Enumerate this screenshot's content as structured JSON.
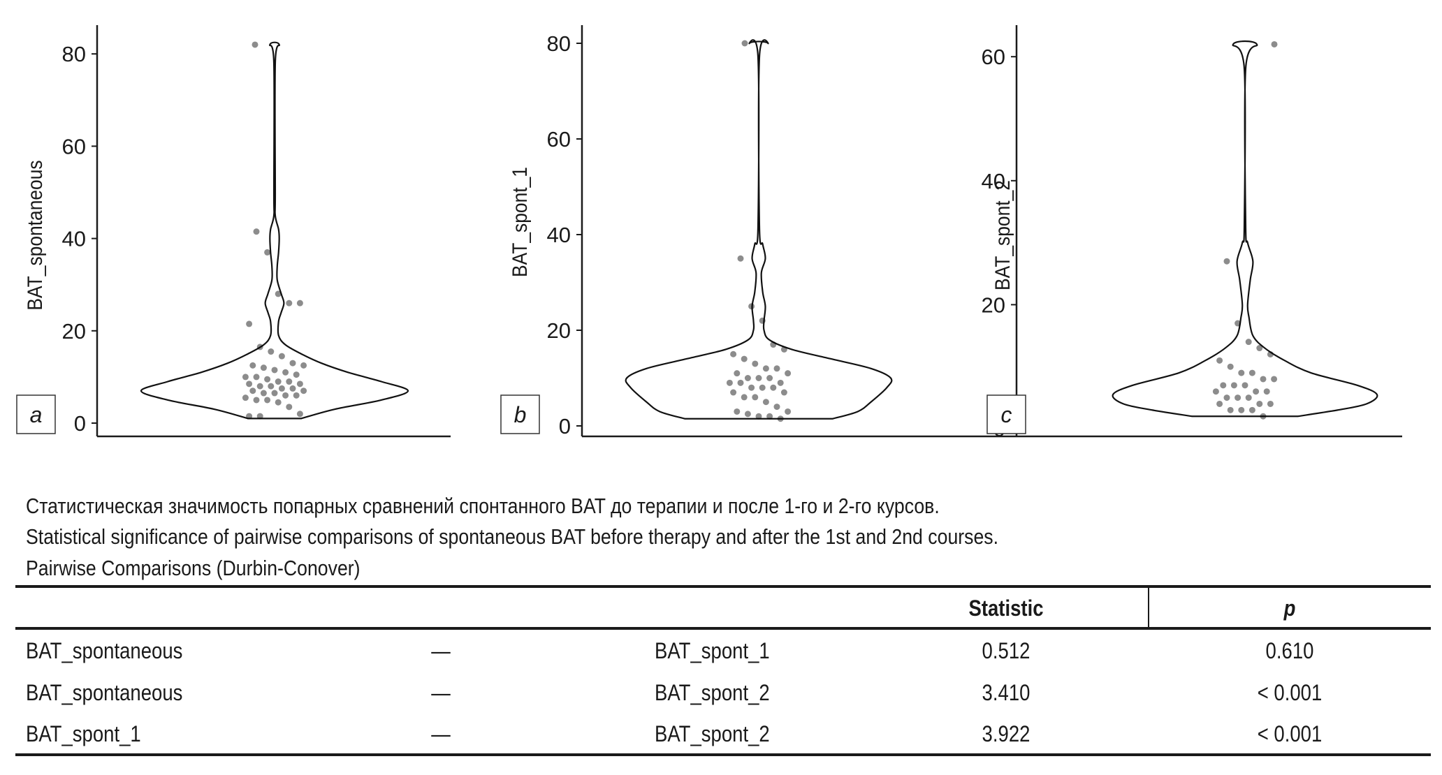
{
  "chart_data": [
    {
      "type": "violin",
      "panel_label": "a",
      "ylabel": "BAT_spontaneous",
      "ylim": [
        0,
        86
      ],
      "yticks": [
        0,
        20,
        40,
        60,
        80
      ],
      "violin_profile": [
        [
          1,
          0.2
        ],
        [
          3,
          0.45
        ],
        [
          5,
          0.8
        ],
        [
          7,
          1.0
        ],
        [
          9,
          0.8
        ],
        [
          11,
          0.55
        ],
        [
          13,
          0.35
        ],
        [
          15,
          0.2
        ],
        [
          17,
          0.08
        ],
        [
          19,
          0.03
        ],
        [
          22,
          0.03
        ],
        [
          24,
          0.05
        ],
        [
          26,
          0.07
        ],
        [
          28,
          0.05
        ],
        [
          31,
          0.02
        ],
        [
          34,
          0.02
        ],
        [
          37,
          0.03
        ],
        [
          40,
          0.035
        ],
        [
          42,
          0.03
        ],
        [
          45,
          0.005
        ],
        [
          50,
          0.005
        ],
        [
          78,
          0.005
        ],
        [
          82,
          0.035
        ]
      ],
      "points": [
        82,
        41.5,
        37,
        28,
        26,
        26,
        21.5,
        16.5,
        15.5,
        14.5,
        13,
        12.5,
        12.5,
        12,
        11.5,
        11,
        10.5,
        10,
        10,
        9.5,
        9,
        9,
        8.5,
        8.5,
        8,
        8,
        7.5,
        7.5,
        7,
        7,
        6.5,
        6.5,
        6,
        6,
        5.5,
        5,
        5,
        4.5,
        3.5,
        2,
        1.5,
        1.5
      ]
    },
    {
      "type": "violin",
      "panel_label": "b",
      "ylabel": "BAT_spont_1",
      "ylim": [
        0,
        82
      ],
      "yticks": [
        0,
        20,
        40,
        60,
        80
      ],
      "violin_profile": [
        [
          1.5,
          0.56
        ],
        [
          3,
          0.75
        ],
        [
          5,
          0.85
        ],
        [
          8,
          0.97
        ],
        [
          10,
          1.0
        ],
        [
          12,
          0.85
        ],
        [
          14,
          0.55
        ],
        [
          16,
          0.25
        ],
        [
          18,
          0.08
        ],
        [
          20,
          0.04
        ],
        [
          22,
          0.04
        ],
        [
          25,
          0.05
        ],
        [
          28,
          0.03
        ],
        [
          32,
          0.02
        ],
        [
          35,
          0.05
        ],
        [
          38,
          0.03
        ],
        [
          42,
          0.005
        ],
        [
          77,
          0.005
        ],
        [
          80,
          0.07
        ]
      ],
      "points": [
        80,
        35,
        25,
        22,
        17,
        16,
        15,
        14,
        13,
        12,
        12,
        11,
        11,
        10,
        10,
        10,
        9,
        9,
        9,
        8,
        8,
        8,
        7,
        7,
        6,
        6,
        5,
        4,
        3,
        3,
        2.5,
        2,
        2,
        1.5
      ]
    },
    {
      "type": "violin",
      "panel_label": "c",
      "ylabel": "BAT_spont_2",
      "ylim": [
        0,
        65
      ],
      "yticks": [
        0,
        20,
        40,
        60
      ],
      "violin_profile": [
        [
          2,
          0.4
        ],
        [
          3,
          0.7
        ],
        [
          4,
          0.92
        ],
        [
          5.5,
          1.0
        ],
        [
          7,
          0.85
        ],
        [
          9,
          0.5
        ],
        [
          11,
          0.3
        ],
        [
          13,
          0.15
        ],
        [
          15,
          0.06
        ],
        [
          18,
          0.03
        ],
        [
          20,
          0.02
        ],
        [
          24,
          0.04
        ],
        [
          27,
          0.06
        ],
        [
          30,
          0.02
        ],
        [
          33,
          0.005
        ],
        [
          58,
          0.005
        ],
        [
          62,
          0.09
        ]
      ],
      "points": [
        62,
        27,
        17,
        14,
        13,
        12,
        11,
        10,
        9,
        9,
        8,
        8,
        7,
        7,
        7,
        6,
        6,
        6,
        5,
        5,
        5,
        4,
        4,
        4,
        3,
        3,
        3,
        2
      ]
    }
  ],
  "caption": {
    "ru": "Статистическая значимость попарных сравнений спонтанного BAT до терапии и после 1-го и 2-го курсов.",
    "en": "Statistical significance of pairwise comparisons of spontaneous BAT before therapy and after the 1st and 2nd courses.",
    "table_title": "Pairwise Comparisons (Durbin-Conover)"
  },
  "table": {
    "headers": {
      "statistic": "Statistic",
      "p": "p"
    },
    "rows": [
      {
        "a": "BAT_spontaneous",
        "dash": "—",
        "b": "BAT_spont_1",
        "statistic": "0.512",
        "p": "0.610"
      },
      {
        "a": "BAT_spontaneous",
        "dash": "—",
        "b": "BAT_spont_2",
        "statistic": "3.410",
        "p": "< 0.001"
      },
      {
        "a": "BAT_spont_1",
        "dash": "—",
        "b": "BAT_spont_2",
        "statistic": "3.922",
        "p": "< 0.001"
      }
    ]
  }
}
